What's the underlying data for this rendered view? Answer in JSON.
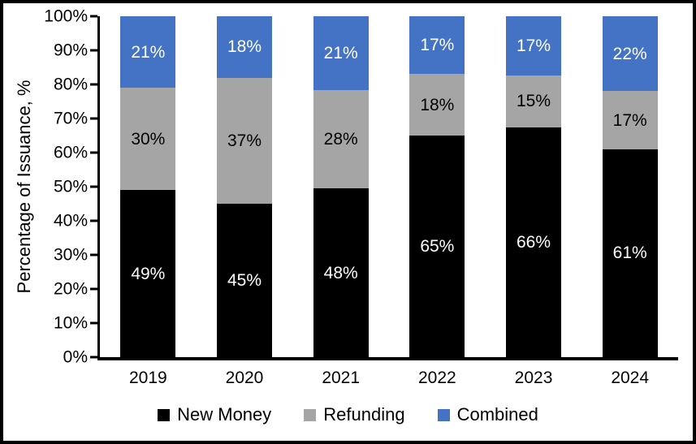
{
  "chart_data": {
    "type": "bar",
    "stacked": true,
    "percent_stacked": true,
    "title": "",
    "xlabel": "",
    "ylabel": "Percentage of Issuance, %",
    "categories": [
      "2019",
      "2020",
      "2021",
      "2022",
      "2023",
      "2024"
    ],
    "series": [
      {
        "name": "New Money",
        "color": "#000000",
        "label_color": "#ffffff",
        "values": [
          49,
          45,
          48,
          65,
          66,
          61
        ]
      },
      {
        "name": "Refunding",
        "color": "#A5A5A5",
        "label_color": "#000000",
        "values": [
          30,
          37,
          28,
          18,
          15,
          17
        ]
      },
      {
        "name": "Combined",
        "color": "#4472C4",
        "label_color": "#ffffff",
        "values": [
          21,
          18,
          21,
          17,
          17,
          22
        ]
      }
    ],
    "data_label_suffix": "%",
    "y_ticks": [
      "0%",
      "10%",
      "20%",
      "30%",
      "40%",
      "50%",
      "60%",
      "70%",
      "80%",
      "90%",
      "100%"
    ],
    "ylim": [
      0,
      100
    ],
    "grid": false,
    "legend_position": "bottom",
    "frame_color": "#000000",
    "background_color": "#ffffff"
  }
}
